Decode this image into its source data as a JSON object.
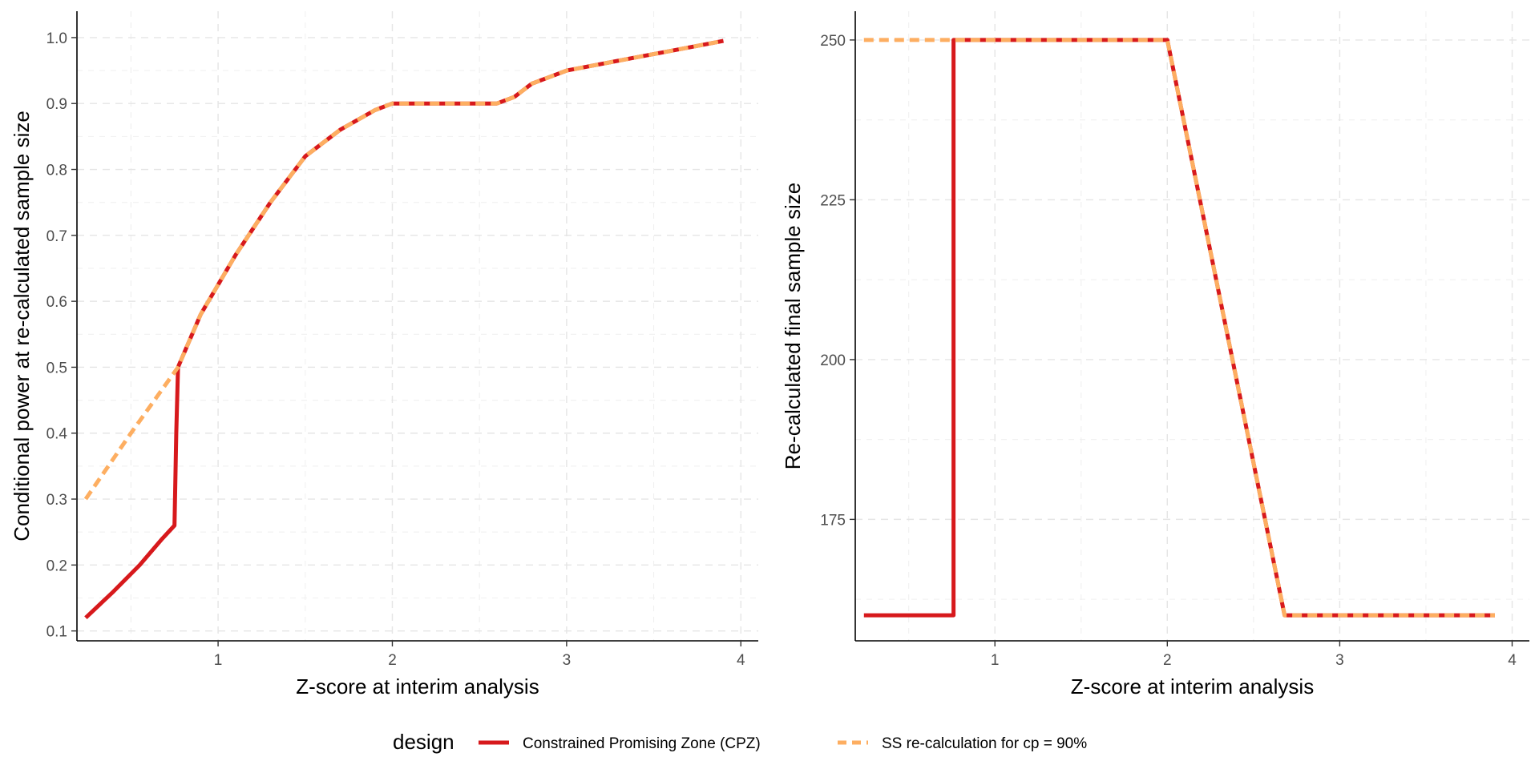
{
  "chart_data": [
    {
      "type": "line",
      "title": "",
      "xlabel": "Z-score at interim analysis",
      "ylabel": "Conditional power at re-calculated sample size",
      "xlim": [
        0.19,
        4.1
      ],
      "ylim": [
        0.085,
        1.04
      ],
      "xticks": [
        1,
        2,
        3,
        4
      ],
      "xtick_labels": [
        "1",
        "2",
        "3",
        "4"
      ],
      "yticks": [
        0.1,
        0.2,
        0.3,
        0.4,
        0.5,
        0.6,
        0.7,
        0.8,
        0.9,
        1.0
      ],
      "ytick_labels": [
        "0.1",
        "0.2",
        "0.3",
        "0.4",
        "0.5",
        "0.6",
        "0.7",
        "0.8",
        "0.9",
        "1.0"
      ],
      "grid": true,
      "series": [
        {
          "name": "Constrained Promising Zone (CPZ)",
          "color": "#d7191c",
          "dash": "solid",
          "x": [
            0.24,
            0.4,
            0.55,
            0.68,
            0.75,
            0.76,
            0.77,
            0.9,
            1.1,
            1.3,
            1.5,
            1.7,
            1.9,
            2.0,
            2.1,
            2.2,
            2.3,
            2.4,
            2.5,
            2.6,
            2.7,
            2.8,
            2.9,
            3.0,
            3.2,
            3.4,
            3.6,
            3.8,
            3.9
          ],
          "y": [
            0.12,
            0.16,
            0.2,
            0.24,
            0.26,
            0.4,
            0.5,
            0.58,
            0.67,
            0.75,
            0.82,
            0.86,
            0.89,
            0.9,
            0.9,
            0.9,
            0.9,
            0.9,
            0.9,
            0.9,
            0.91,
            0.93,
            0.94,
            0.95,
            0.96,
            0.97,
            0.98,
            0.99,
            0.995
          ]
        },
        {
          "name": "SS re-calculation for cp = 90%",
          "color": "#fdae61",
          "dash": "dashed",
          "x": [
            0.24,
            0.5,
            0.77,
            0.9,
            1.1,
            1.3,
            1.5,
            1.7,
            1.9,
            2.0,
            2.1,
            2.2,
            2.3,
            2.4,
            2.5,
            2.6,
            2.7,
            2.8,
            2.9,
            3.0,
            3.2,
            3.4,
            3.6,
            3.8,
            3.9
          ],
          "y": [
            0.3,
            0.4,
            0.5,
            0.58,
            0.67,
            0.75,
            0.82,
            0.86,
            0.89,
            0.9,
            0.9,
            0.9,
            0.9,
            0.9,
            0.9,
            0.9,
            0.91,
            0.93,
            0.94,
            0.95,
            0.96,
            0.97,
            0.98,
            0.99,
            0.995
          ]
        }
      ]
    },
    {
      "type": "line",
      "title": "",
      "xlabel": "Z-score at interim analysis",
      "ylabel": "Re-calculated final sample size",
      "xlim": [
        0.19,
        4.1
      ],
      "ylim": [
        156,
        254.5
      ],
      "xticks": [
        1,
        2,
        3,
        4
      ],
      "xtick_labels": [
        "1",
        "2",
        "3",
        "4"
      ],
      "yticks": [
        175,
        200,
        225,
        250
      ],
      "ytick_labels": [
        "175",
        "200",
        "225",
        "250"
      ],
      "grid": true,
      "series": [
        {
          "name": "Constrained Promising Zone (CPZ)",
          "color": "#d7191c",
          "dash": "solid",
          "x": [
            0.24,
            0.76,
            0.76,
            2.0,
            2.68,
            3.9
          ],
          "y": [
            160,
            160,
            250,
            250,
            160,
            160
          ]
        },
        {
          "name": "SS re-calculation for cp = 90%",
          "color": "#fdae61",
          "dash": "dashed",
          "x": [
            0.24,
            2.0,
            2.68,
            3.9
          ],
          "y": [
            250,
            250,
            160,
            160
          ]
        }
      ]
    }
  ],
  "legend": {
    "title": "design",
    "position": "bottom",
    "items": [
      {
        "label": "Constrained Promising Zone (CPZ)",
        "color": "#d7191c",
        "dash": "solid"
      },
      {
        "label": "SS re-calculation for cp = 90%",
        "color": "#fdae61",
        "dash": "dashed"
      }
    ]
  }
}
